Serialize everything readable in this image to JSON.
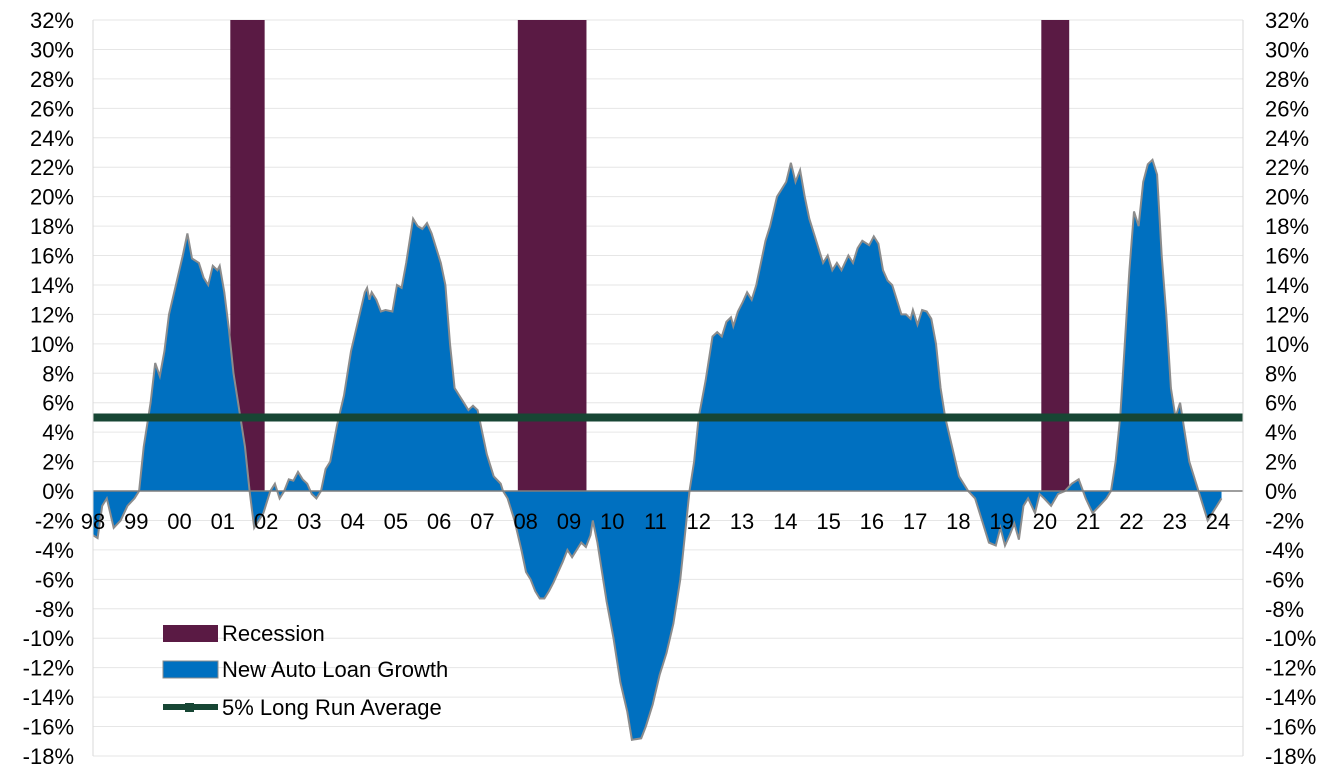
{
  "chart_data": {
    "type": "area",
    "title": "",
    "xlabel": "",
    "ylabel": "",
    "ylim": [
      -18,
      32
    ],
    "y_tick_step": 2,
    "y_unit": "%",
    "x_range": [
      1998.0,
      2024.8
    ],
    "x_tick_labels": [
      "98",
      "99",
      "00",
      "01",
      "02",
      "03",
      "04",
      "05",
      "06",
      "07",
      "08",
      "09",
      "10",
      "11",
      "12",
      "13",
      "14",
      "15",
      "16",
      "17",
      "18",
      "19",
      "20",
      "21",
      "22",
      "23",
      "24"
    ],
    "grid": true,
    "secondary_y_axis": true,
    "legend_position": "bottom-left",
    "colors": {
      "recession": "#5A1A44",
      "growth": "#0070C0",
      "growth_outline": "#8C8C8C",
      "average": "#174634",
      "grid": "#E6E6E6"
    },
    "recessions": [
      [
        2001.2,
        2002.0
      ],
      [
        2007.9,
        2009.5
      ],
      [
        2020.1,
        2020.75
      ]
    ],
    "long_run_average": 5,
    "series": [
      {
        "name": "Recession"
      },
      {
        "name": "New Auto Loan Growth",
        "points": [
          [
            1998.0,
            -3
          ],
          [
            1998.1,
            -3.2
          ],
          [
            1998.2,
            -1
          ],
          [
            1998.3,
            -0.5
          ],
          [
            1998.45,
            -2.5
          ],
          [
            1998.6,
            -2
          ],
          [
            1998.75,
            -1
          ],
          [
            1998.9,
            -0.5
          ],
          [
            1999.0,
            0
          ],
          [
            1999.1,
            3
          ],
          [
            1999.25,
            6
          ],
          [
            1999.35,
            8.7
          ],
          [
            1999.45,
            7.8
          ],
          [
            1999.55,
            9.5
          ],
          [
            1999.65,
            12
          ],
          [
            1999.8,
            14
          ],
          [
            1999.95,
            16
          ],
          [
            2000.05,
            17.5
          ],
          [
            2000.15,
            15.8
          ],
          [
            2000.3,
            15.5
          ],
          [
            2000.4,
            14.5
          ],
          [
            2000.5,
            14
          ],
          [
            2000.6,
            15.3
          ],
          [
            2000.7,
            15
          ],
          [
            2000.75,
            15.3
          ],
          [
            2000.85,
            13.5
          ],
          [
            2000.95,
            11
          ],
          [
            2001.05,
            8
          ],
          [
            2001.15,
            6
          ],
          [
            2001.3,
            3
          ],
          [
            2001.4,
            0
          ],
          [
            2001.5,
            -2.5
          ],
          [
            2001.6,
            -2
          ],
          [
            2001.7,
            -1.5
          ],
          [
            2001.85,
            0
          ],
          [
            2001.95,
            0.5
          ],
          [
            2002.05,
            -0.5
          ],
          [
            2002.15,
            0
          ],
          [
            2002.25,
            0.8
          ],
          [
            2002.35,
            0.7
          ],
          [
            2002.45,
            1.3
          ],
          [
            2002.55,
            0.8
          ],
          [
            2002.65,
            0.5
          ],
          [
            2002.75,
            -0.2
          ],
          [
            2002.85,
            -0.5
          ],
          [
            2002.95,
            0
          ],
          [
            2003.05,
            1.5
          ],
          [
            2003.15,
            2
          ],
          [
            2003.3,
            4.5
          ],
          [
            2003.45,
            6.5
          ],
          [
            2003.6,
            9.5
          ],
          [
            2003.75,
            11.5
          ],
          [
            2003.9,
            13.5
          ],
          [
            2003.95,
            13.8
          ],
          [
            2004.0,
            13
          ],
          [
            2004.05,
            13.5
          ],
          [
            2004.15,
            13
          ],
          [
            2004.25,
            12.2
          ],
          [
            2004.35,
            12.3
          ],
          [
            2004.5,
            12.2
          ],
          [
            2004.6,
            14
          ],
          [
            2004.7,
            13.8
          ],
          [
            2004.8,
            15.5
          ],
          [
            2004.9,
            17.5
          ],
          [
            2004.95,
            18.5
          ],
          [
            2005.05,
            18
          ],
          [
            2005.15,
            17.8
          ],
          [
            2005.25,
            18.2
          ],
          [
            2005.35,
            17.5
          ],
          [
            2005.45,
            16.5
          ],
          [
            2005.55,
            15.5
          ],
          [
            2005.65,
            14
          ],
          [
            2005.75,
            10
          ],
          [
            2005.85,
            7
          ],
          [
            2005.95,
            6.5
          ],
          [
            2006.05,
            6
          ],
          [
            2006.15,
            5.5
          ],
          [
            2006.25,
            5.8
          ],
          [
            2006.35,
            5.5
          ],
          [
            2006.45,
            4
          ],
          [
            2006.55,
            2.5
          ],
          [
            2006.7,
            1
          ],
          [
            2006.85,
            0.5
          ],
          [
            2006.9,
            0
          ],
          [
            2007.0,
            -0.5
          ],
          [
            2007.15,
            -2
          ],
          [
            2007.3,
            -4
          ],
          [
            2007.4,
            -5.5
          ],
          [
            2007.5,
            -6
          ],
          [
            2007.6,
            -6.8
          ],
          [
            2007.7,
            -7.3
          ],
          [
            2007.8,
            -7.3
          ],
          [
            2007.9,
            -6.8
          ],
          [
            2008.0,
            -6.2
          ],
          [
            2008.1,
            -5.5
          ],
          [
            2008.2,
            -4.8
          ],
          [
            2008.3,
            -4
          ],
          [
            2008.4,
            -4.5
          ],
          [
            2008.5,
            -4
          ],
          [
            2008.6,
            -3.5
          ],
          [
            2008.7,
            -3.8
          ],
          [
            2008.8,
            -3
          ],
          [
            2008.85,
            -2
          ],
          [
            2008.95,
            -3.5
          ],
          [
            2009.05,
            -5.5
          ],
          [
            2009.15,
            -7.5
          ],
          [
            2009.3,
            -10
          ],
          [
            2009.45,
            -13
          ],
          [
            2009.6,
            -15
          ],
          [
            2009.7,
            -16.9
          ],
          [
            2009.9,
            -16.8
          ],
          [
            2010.0,
            -16
          ],
          [
            2010.15,
            -14.5
          ],
          [
            2010.3,
            -12.5
          ],
          [
            2010.45,
            -11
          ],
          [
            2010.6,
            -9
          ],
          [
            2010.75,
            -6
          ],
          [
            2010.85,
            -3
          ],
          [
            2010.95,
            0
          ],
          [
            2011.05,
            2
          ],
          [
            2011.15,
            5
          ],
          [
            2011.3,
            7.5
          ],
          [
            2011.45,
            10.5
          ],
          [
            2011.55,
            10.8
          ],
          [
            2011.65,
            10.5
          ],
          [
            2011.75,
            11.5
          ],
          [
            2011.85,
            11.8
          ],
          [
            2011.9,
            11.2
          ],
          [
            2012.0,
            12.2
          ],
          [
            2012.1,
            12.8
          ],
          [
            2012.2,
            13.5
          ],
          [
            2012.3,
            13
          ],
          [
            2012.4,
            14
          ],
          [
            2012.5,
            15.5
          ],
          [
            2012.6,
            17
          ],
          [
            2012.7,
            18
          ],
          [
            2012.85,
            20
          ],
          [
            2012.95,
            20.5
          ],
          [
            2013.05,
            21
          ],
          [
            2013.15,
            22.3
          ],
          [
            2013.25,
            21
          ],
          [
            2013.35,
            21.8
          ],
          [
            2013.45,
            20
          ],
          [
            2013.55,
            18.5
          ],
          [
            2013.65,
            17.5
          ],
          [
            2013.75,
            16.5
          ],
          [
            2013.85,
            15.5
          ],
          [
            2013.95,
            16
          ],
          [
            2014.05,
            15
          ],
          [
            2014.15,
            15.5
          ],
          [
            2014.25,
            15
          ],
          [
            2014.4,
            16
          ],
          [
            2014.5,
            15.5
          ],
          [
            2014.6,
            16.5
          ],
          [
            2014.7,
            17
          ],
          [
            2014.85,
            16.7
          ],
          [
            2014.95,
            17.3
          ],
          [
            2015.05,
            16.8
          ],
          [
            2015.15,
            15
          ],
          [
            2015.25,
            14.3
          ],
          [
            2015.35,
            14
          ],
          [
            2015.45,
            13
          ],
          [
            2015.55,
            12
          ],
          [
            2015.65,
            12
          ],
          [
            2015.75,
            11.7
          ],
          [
            2015.8,
            12.3
          ],
          [
            2015.9,
            11.3
          ],
          [
            2016.0,
            12.3
          ],
          [
            2016.1,
            12.2
          ],
          [
            2016.2,
            11.7
          ],
          [
            2016.3,
            10
          ],
          [
            2016.4,
            7
          ],
          [
            2016.5,
            5
          ],
          [
            2016.65,
            3
          ],
          [
            2016.8,
            1
          ],
          [
            2016.9,
            0.5
          ],
          [
            2017.0,
            0
          ],
          [
            2017.15,
            -0.5
          ],
          [
            2017.3,
            -2
          ],
          [
            2017.45,
            -3.5
          ],
          [
            2017.6,
            -3.7
          ],
          [
            2017.7,
            -2.5
          ],
          [
            2017.8,
            -3.7
          ],
          [
            2017.9,
            -3
          ],
          [
            2018.0,
            -2.2
          ],
          [
            2018.1,
            -3.3
          ],
          [
            2018.2,
            -1
          ],
          [
            2018.3,
            -0.5
          ],
          [
            2018.45,
            -1.5
          ],
          [
            2018.55,
            -0.2
          ],
          [
            2018.65,
            -0.5
          ],
          [
            2018.8,
            -1
          ],
          [
            2018.95,
            -0.2
          ],
          [
            2019.1,
            0
          ],
          [
            2019.25,
            0.5
          ],
          [
            2019.4,
            0.8
          ],
          [
            2019.55,
            -0.5
          ],
          [
            2019.7,
            -1.5
          ],
          [
            2019.85,
            -1
          ],
          [
            2020.0,
            -0.5
          ],
          [
            2020.1,
            0
          ],
          [
            2020.2,
            2
          ],
          [
            2020.3,
            5
          ],
          [
            2020.4,
            10
          ],
          [
            2020.5,
            15
          ],
          [
            2020.6,
            19
          ],
          [
            2020.7,
            18
          ],
          [
            2020.8,
            21
          ],
          [
            2020.9,
            22.2
          ],
          [
            2021.0,
            22.5
          ],
          [
            2021.1,
            21.5
          ],
          [
            2021.2,
            16
          ],
          [
            2021.3,
            12
          ],
          [
            2021.4,
            7
          ],
          [
            2021.5,
            5
          ],
          [
            2021.6,
            6
          ],
          [
            2021.7,
            4
          ],
          [
            2021.8,
            2
          ],
          [
            2021.9,
            1
          ],
          [
            2022.0,
            0
          ],
          [
            2022.1,
            -1
          ],
          [
            2022.2,
            -2
          ],
          [
            2022.3,
            -1.5
          ],
          [
            2022.4,
            -1
          ],
          [
            2022.5,
            -0.5
          ]
        ],
        "note_x": ""
      },
      {
        "name": "5% Long Run Average"
      }
    ],
    "legend": [
      "Recession",
      "New Auto Loan Growth",
      "5% Long Run Average"
    ]
  }
}
